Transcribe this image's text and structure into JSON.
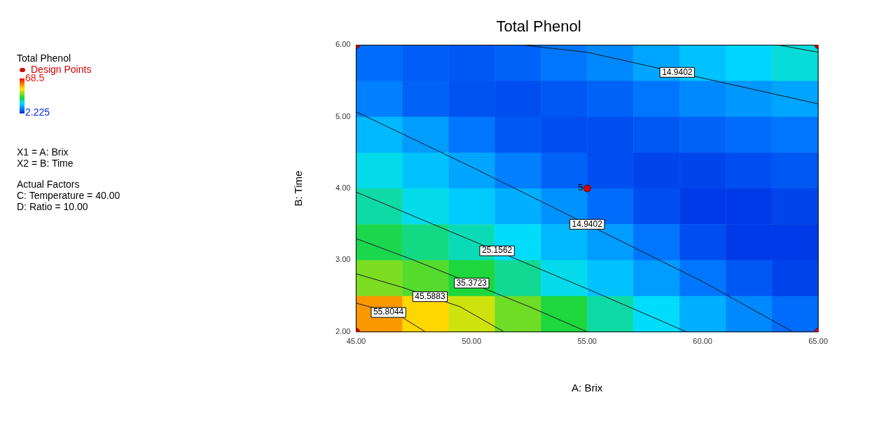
{
  "chart_data": {
    "type": "heatmap",
    "title": "Total Phenol",
    "xlabel": "A: Brix",
    "ylabel": "B: Time",
    "legend_title": "Total Phenol",
    "legend": "left",
    "grid": false,
    "clim": [
      2.225,
      68.5
    ],
    "cticks": [
      2.225,
      68.5
    ],
    "xlim": [
      45,
      65
    ],
    "ylim": [
      2,
      6
    ],
    "xticks": [
      {
        "value": 45,
        "label": "45.00"
      },
      {
        "value": 50,
        "label": "50.00"
      },
      {
        "value": 55,
        "label": "55.00"
      },
      {
        "value": 60,
        "label": "60.00"
      },
      {
        "value": 65,
        "label": "65.00"
      }
    ],
    "yticks": [
      {
        "value": 2,
        "label": "2.00"
      },
      {
        "value": 3,
        "label": "3.00"
      },
      {
        "value": 4,
        "label": "4.00"
      },
      {
        "value": 5,
        "label": "5.00"
      },
      {
        "value": 6,
        "label": "6.00"
      }
    ],
    "cells": [
      [
        9,
        7.5,
        7,
        8,
        10,
        12,
        15,
        18,
        20,
        23
      ],
      [
        11,
        8,
        6.5,
        6,
        7,
        8,
        10,
        12,
        13.5,
        15
      ],
      [
        17,
        14,
        10,
        7,
        6,
        6,
        7,
        8,
        9,
        10
      ],
      [
        22,
        18,
        15,
        11,
        8,
        6,
        5,
        5,
        6,
        7
      ],
      [
        26,
        22,
        19,
        16,
        13,
        9,
        6,
        4,
        4,
        5
      ],
      [
        31,
        28,
        25,
        21,
        17,
        14,
        10,
        6,
        4,
        4
      ],
      [
        39,
        36,
        32,
        27,
        22,
        18,
        14,
        10,
        7,
        5
      ],
      [
        56,
        50,
        45,
        38,
        32,
        26,
        21,
        16,
        12,
        9
      ]
    ],
    "series": [
      {
        "type": "line",
        "color": "#1a1a1a",
        "marker": "none",
        "x": [
          45,
          50,
          60,
          63.9
        ],
        "values": [
          5.07,
          4.3,
          2.7,
          2.0
        ]
      },
      {
        "type": "line",
        "color": "#1a1a1a",
        "marker": "none",
        "x": [
          52.2,
          55,
          65
        ],
        "values": [
          6,
          5.9,
          5.18
        ]
      },
      {
        "type": "line",
        "color": "#1a1a1a",
        "marker": "none",
        "x": [
          63.3,
          65
        ],
        "values": [
          6,
          5.9
        ]
      },
      {
        "type": "line",
        "color": "#1a1a1a",
        "marker": "none",
        "x": [
          45,
          55,
          59.3
        ],
        "values": [
          3.95,
          2.6,
          2.0
        ]
      },
      {
        "type": "line",
        "color": "#1a1a1a",
        "marker": "none",
        "x": [
          45,
          47.5,
          52.5,
          55
        ],
        "values": [
          3.3,
          3.0,
          2.35,
          2.0
        ]
      },
      {
        "type": "line",
        "color": "#1a1a1a",
        "marker": "none",
        "x": [
          45,
          47,
          49.5,
          51.4
        ],
        "values": [
          2.81,
          2.62,
          2.35,
          2.0
        ]
      },
      {
        "type": "line",
        "color": "#1a1a1a",
        "marker": "none",
        "x": [
          45,
          45.8,
          47,
          48
        ],
        "values": [
          2.4,
          2.33,
          2.2,
          2.0
        ]
      },
      {
        "type": "scatter",
        "name": "Design Points",
        "color": "#d40000",
        "marker": "circle",
        "x": [
          45,
          65,
          55,
          45,
          65
        ],
        "values": [
          6,
          6,
          4,
          2,
          2
        ]
      }
    ],
    "annotations": [
      {
        "text": "5",
        "x": 55,
        "y": 4
      },
      {
        "text": "14.9402",
        "x": 58.9,
        "y": 5.62
      },
      {
        "text": "14.9402",
        "x": 55,
        "y": 3.5
      },
      {
        "text": "25.1562",
        "x": 51.1,
        "y": 3.13
      },
      {
        "text": "35.3723",
        "x": 50.0,
        "y": 2.68
      },
      {
        "text": "45.5883",
        "x": 48.2,
        "y": 2.49
      },
      {
        "text": "55.8044",
        "x": 46.4,
        "y": 2.27
      },
      "X1 = A: Brix",
      "X2 = B: Time",
      "Actual Factors",
      "C: Temperature = 40.00",
      "D: Ratio = 10.00"
    ]
  }
}
